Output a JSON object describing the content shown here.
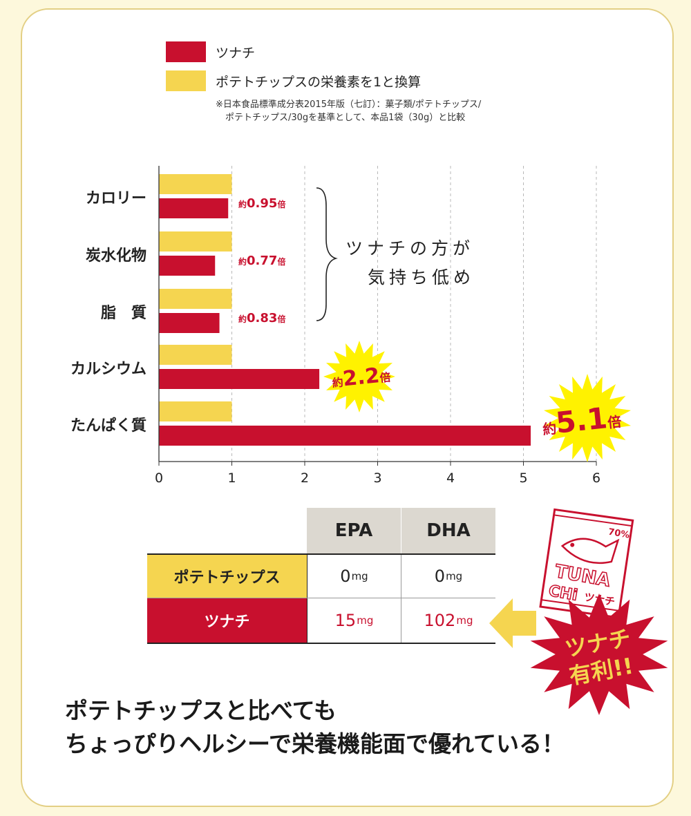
{
  "legend": {
    "tunachi_label": "ツナチ",
    "chips_label": "ポテトチップスの栄養素を1と換算",
    "note_line1": "※日本食品標準成分表2015年版（七訂）：菓子類/ポテトチップス/",
    "note_line2": "ポテトチップス/30gを基準として、本品1袋（30g）と比較"
  },
  "colors": {
    "tunachi": "#c8102e",
    "chips": "#f5d550",
    "label_red": "#c8102e",
    "burst": "#fff200"
  },
  "chart_data": {
    "type": "bar",
    "orientation": "horizontal",
    "categories": [
      "カロリー",
      "炭水化物",
      "脂　質",
      "カルシウム",
      "たんぱく質"
    ],
    "series": [
      {
        "name": "ポテトチップスの栄養素を1と換算",
        "values": [
          1,
          1,
          1,
          1,
          1
        ]
      },
      {
        "name": "ツナチ",
        "values": [
          0.95,
          0.77,
          0.83,
          2.2,
          5.1
        ]
      }
    ],
    "value_labels": [
      {
        "prefix": "約",
        "value": "0.95",
        "suffix": "倍"
      },
      {
        "prefix": "約",
        "value": "0.77",
        "suffix": "倍"
      },
      {
        "prefix": "約",
        "value": "0.83",
        "suffix": "倍"
      },
      {
        "prefix": "約",
        "value": "2.2",
        "suffix": "倍"
      },
      {
        "prefix": "約",
        "value": "5.1",
        "suffix": "倍"
      }
    ],
    "xlim": [
      0,
      6
    ],
    "xticks": [
      "0",
      "1",
      "2",
      "3",
      "4",
      "5",
      "6"
    ],
    "grid": true,
    "annotation_line1": "ツナチの方が",
    "annotation_line2": "気持ち低め"
  },
  "table": {
    "headers": [
      "EPA",
      "DHA"
    ],
    "rows": [
      {
        "label": "ポテトチップス",
        "epa": "0",
        "dha": "0",
        "unit": "mg"
      },
      {
        "label": "ツナチ",
        "epa": "15",
        "dha": "102",
        "unit": "mg"
      }
    ]
  },
  "badge": {
    "line1": "ツナチ",
    "line2": "有利!!"
  },
  "bag": {
    "text1": "TUNA",
    "text2": "CHi",
    "text3": "ツナチ",
    "text4": "70%"
  },
  "headline": {
    "line1": "ポテトチップスと比べても",
    "line2": "ちょっぴりヘルシーで栄養機能面で優れている！"
  }
}
